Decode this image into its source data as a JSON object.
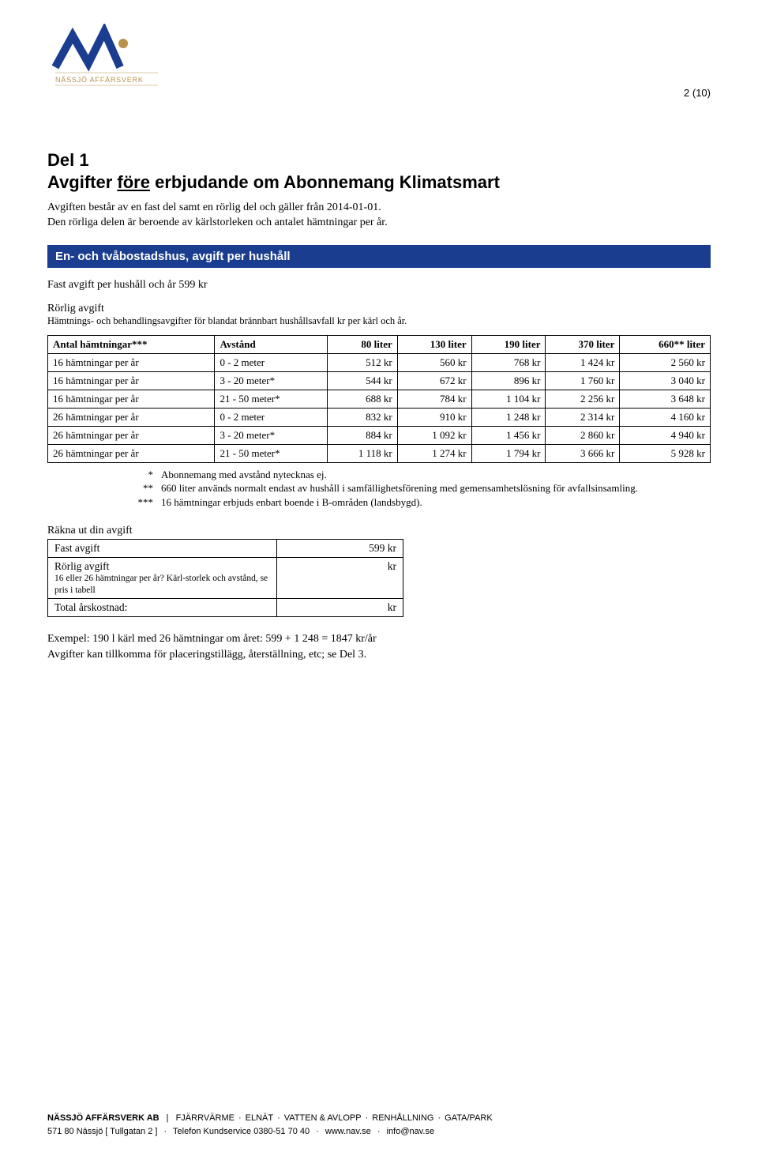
{
  "page_number": "2 (10)",
  "logo": {
    "text": "NÄSSJÖ AFFÄRSVERK",
    "stroke_color": "#1a3d8f",
    "dot_color": "#b8924a",
    "text_color": "#b8924a"
  },
  "header": {
    "section": "Del 1",
    "title_pre": "Avgifter ",
    "title_underline": "före",
    "title_post": " erbjudande om Abonnemang Klimatsmart",
    "intro": "Avgiften består av en fast del samt en rörlig del och gäller från 2014-01-01.\nDen rörliga delen är beroende av kärlstorleken och antalet hämtningar per år."
  },
  "bluebar": "En- och tvåbostadshus, avgift per hushåll",
  "fixed_fee": "Fast avgift per hushåll och år 599 kr",
  "variable_head": "Rörlig avgift",
  "variable_sub": "Hämtnings- och behandlingsavgifter för blandat brännbart hushållsavfall kr per kärl och år.",
  "fees_table": {
    "columns": [
      "Antal hämtningar***",
      "Avstånd",
      "80 liter",
      "130 liter",
      "190 liter",
      "370 liter",
      "660** liter"
    ],
    "rows": [
      [
        "16 hämtningar per år",
        "0 - 2 meter",
        "512 kr",
        "560 kr",
        "768 kr",
        "1 424 kr",
        "2 560 kr"
      ],
      [
        "16 hämtningar per år",
        "3 - 20 meter*",
        "544 kr",
        "672 kr",
        "896 kr",
        "1 760 kr",
        "3 040 kr"
      ],
      [
        "16 hämtningar per år",
        "21 - 50 meter*",
        "688 kr",
        "784 kr",
        "1 104 kr",
        "2 256 kr",
        "3 648 kr"
      ],
      [
        "26 hämtningar per år",
        "0 - 2 meter",
        "832 kr",
        "910 kr",
        "1 248 kr",
        "2 314 kr",
        "4 160 kr"
      ],
      [
        "26 hämtningar per år",
        "3 - 20 meter*",
        "884 kr",
        "1 092 kr",
        "1 456 kr",
        "2 860 kr",
        "4 940 kr"
      ],
      [
        "26 hämtningar per år",
        "21 - 50 meter*",
        "1 118 kr",
        "1 274 kr",
        "1 794 kr",
        "3 666 kr",
        "5 928 kr"
      ]
    ]
  },
  "notes": [
    {
      "mark": "*",
      "text": "Abonnemang med avstånd nytecknas ej."
    },
    {
      "mark": "**",
      "text": "660 liter används normalt endast av hushåll i samfällighetsförening med gemensamhetslösning för avfallsinsamling."
    },
    {
      "mark": "***",
      "text": "16 hämtningar erbjuds enbart boende i B-områden (landsbygd)."
    }
  ],
  "calc": {
    "head": "Räkna ut din avgift",
    "rows": [
      {
        "label": "Fast avgift",
        "value": "599 kr"
      },
      {
        "label": "Rörlig avgift",
        "sub": "16 eller 26 hämtningar per år? Kärl-storlek och avstånd, se pris i tabell",
        "value": "kr"
      },
      {
        "label": "Total årskostnad:",
        "value": "kr",
        "valtop": true
      }
    ]
  },
  "example": "Exempel: 190 l kärl med 26 hämtningar om året: 599 + 1 248 =  1847 kr/år\nAvgifter kan tillkomma för placeringstillägg, återställning, etc; se Del 3.",
  "footer": {
    "company": "NÄSSJÖ AFFÄRSVERK AB",
    "services": [
      "FJÄRRVÄRME",
      "ELNÄT",
      "VATTEN & AVLOPP",
      "RENHÅLLNING",
      "GATA/PARK"
    ],
    "line2_a": "571 80 Nässjö [ Tullgatan 2 ]",
    "line2_b": "Telefon Kundservice 0380-51 70 40",
    "line2_c": "www.nav.se",
    "line2_d": "info@nav.se"
  }
}
